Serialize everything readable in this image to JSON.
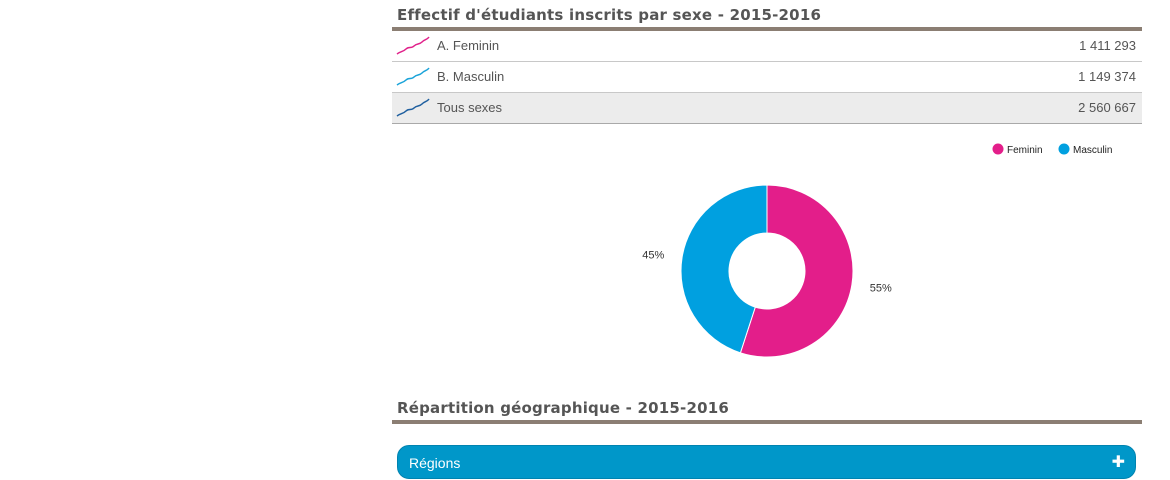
{
  "section1": {
    "title": "Effectif d'étudiants inscrits par sexe - 2015-2016"
  },
  "table": {
    "rows": [
      {
        "label": "A. Feminin",
        "value": "1 411 293",
        "icon": "sparkline-icon",
        "color": "#e0218a"
      },
      {
        "label": "B. Masculin",
        "value": "1 149 374",
        "icon": "sparkline-icon",
        "color": "#1aa3d9"
      },
      {
        "label": "Tous sexes",
        "value": "2 560 667",
        "icon": "sparkline-icon",
        "color": "#1f5f9f"
      }
    ]
  },
  "chart_data": {
    "type": "pie",
    "donut": true,
    "title": "",
    "legend_position": "top-right",
    "series": [
      {
        "name": "Feminin",
        "value": 55,
        "label": "55%",
        "color": "#e31e8a"
      },
      {
        "name": "Masculin",
        "value": 45,
        "label": "45%",
        "color": "#00a0e0"
      }
    ]
  },
  "section2": {
    "title": "Répartition géographique - 2015-2016"
  },
  "accordion": {
    "label": "Régions",
    "icon": "plus-icon",
    "color": "#0097c9"
  }
}
